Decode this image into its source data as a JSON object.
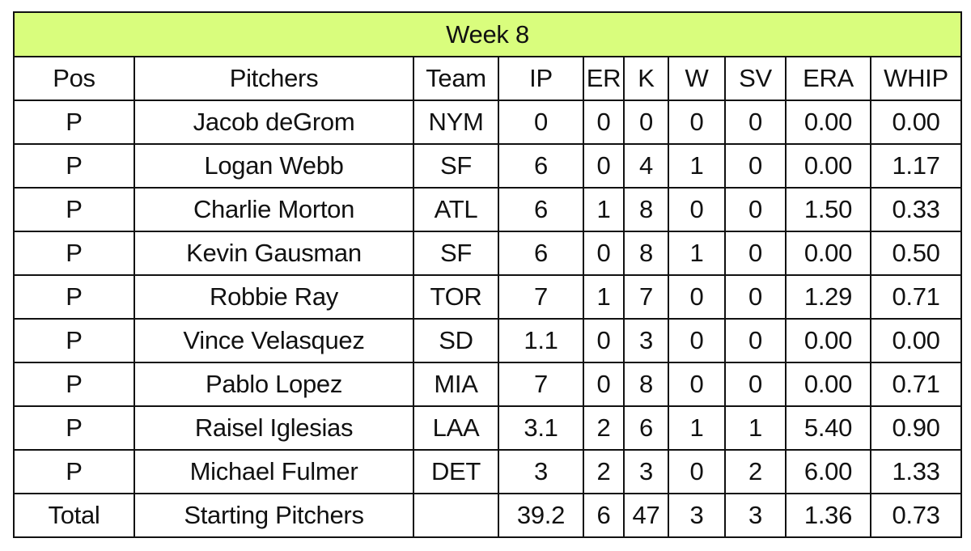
{
  "title": "Week 8",
  "columns": [
    "Pos",
    "Pitchers",
    "Team",
    "IP",
    "ER",
    "K",
    "W",
    "SV",
    "ERA",
    "WHIP"
  ],
  "rows": [
    [
      "P",
      "Jacob deGrom",
      "NYM",
      "0",
      "0",
      "0",
      "0",
      "0",
      "0.00",
      "0.00"
    ],
    [
      "P",
      "Logan Webb",
      "SF",
      "6",
      "0",
      "4",
      "1",
      "0",
      "0.00",
      "1.17"
    ],
    [
      "P",
      "Charlie Morton",
      "ATL",
      "6",
      "1",
      "8",
      "0",
      "0",
      "1.50",
      "0.33"
    ],
    [
      "P",
      "Kevin Gausman",
      "SF",
      "6",
      "0",
      "8",
      "1",
      "0",
      "0.00",
      "0.50"
    ],
    [
      "P",
      "Robbie Ray",
      "TOR",
      "7",
      "1",
      "7",
      "0",
      "0",
      "1.29",
      "0.71"
    ],
    [
      "P",
      "Vince Velasquez",
      "SD",
      "1.1",
      "0",
      "3",
      "0",
      "0",
      "0.00",
      "0.00"
    ],
    [
      "P",
      "Pablo Lopez",
      "MIA",
      "7",
      "0",
      "8",
      "0",
      "0",
      "0.00",
      "0.71"
    ],
    [
      "P",
      "Raisel Iglesias",
      "LAA",
      "3.1",
      "2",
      "6",
      "1",
      "1",
      "5.40",
      "0.90"
    ],
    [
      "P",
      "Michael Fulmer",
      "DET",
      "3",
      "2",
      "3",
      "0",
      "2",
      "6.00",
      "1.33"
    ],
    [
      "Total",
      "Starting Pitchers",
      "",
      "39.2",
      "6",
      "47",
      "3",
      "3",
      "1.36",
      "0.73"
    ]
  ],
  "colors": {
    "title_bg": "#d9fd7d",
    "border": "#111111"
  }
}
